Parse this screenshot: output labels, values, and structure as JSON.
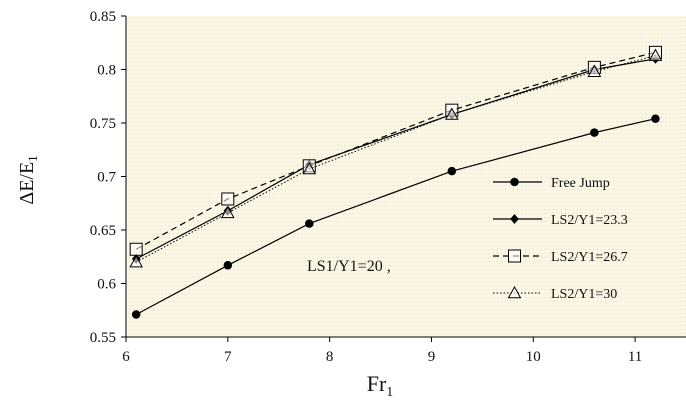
{
  "chart_data": {
    "type": "line",
    "xlabel_main": "Fr",
    "xlabel_sub": "1",
    "ylabel": "ΔE/E",
    "ylabel_sub": "1",
    "xlim": [
      6,
      11.5
    ],
    "ylim": [
      0.55,
      0.85
    ],
    "xticks": [
      6,
      7,
      8,
      9,
      10,
      11
    ],
    "yticks": [
      0.55,
      0.6,
      0.65,
      0.7,
      0.75,
      0.8,
      0.85
    ],
    "grid": false,
    "plot_background": "dotted-cream",
    "legend_position": "right",
    "annotation": "LS1/Y1=20 ,",
    "series": [
      {
        "name": "Free Jump",
        "marker": "filled-circle",
        "line": "solid",
        "color": "#000000",
        "x": [
          6.1,
          7.0,
          7.8,
          9.2,
          10.6,
          11.2
        ],
        "y": [
          0.571,
          0.617,
          0.656,
          0.705,
          0.741,
          0.754
        ]
      },
      {
        "name": "LS2/Y1=23.3",
        "marker": "filled-diamond",
        "line": "solid",
        "color": "#000000",
        "x": [
          6.1,
          7.0,
          7.8,
          9.2,
          10.6,
          11.2
        ],
        "y": [
          0.623,
          0.668,
          0.711,
          0.758,
          0.8,
          0.81
        ]
      },
      {
        "name": "LS2/Y1=26.7",
        "marker": "open-square",
        "line": "dashed",
        "color": "#000000",
        "x": [
          6.1,
          7.0,
          7.8,
          9.2,
          10.6,
          11.2
        ],
        "y": [
          0.632,
          0.679,
          0.71,
          0.762,
          0.802,
          0.816
        ]
      },
      {
        "name": "LS2/Y1=30",
        "marker": "open-triangle",
        "line": "dotted",
        "color": "#000000",
        "x": [
          6.1,
          7.0,
          7.8,
          9.2,
          10.6,
          11.2
        ],
        "y": [
          0.62,
          0.666,
          0.707,
          0.758,
          0.798,
          0.813
        ]
      }
    ]
  }
}
